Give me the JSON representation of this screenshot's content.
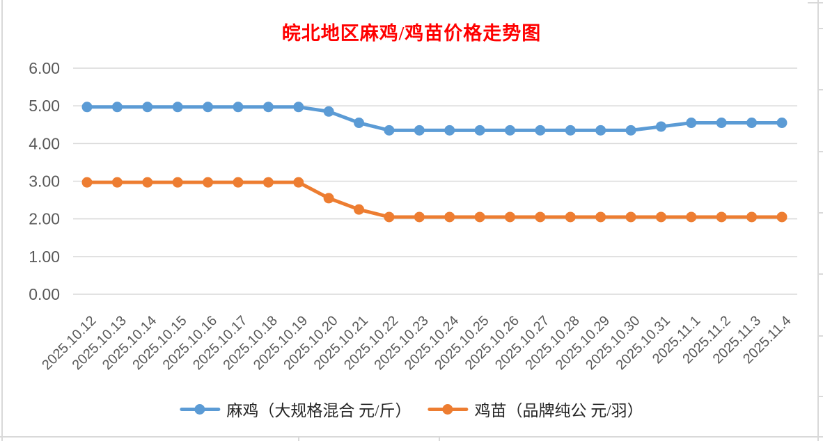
{
  "chart_data": {
    "type": "line",
    "title": "皖北地区麻鸡/鸡苗价格走势图",
    "title_color": "#FF0000",
    "categories": [
      "2025.10.12",
      "2025.10.13",
      "2025.10.14",
      "2025.10.15",
      "2025.10.16",
      "2025.10.17",
      "2025.10.18",
      "2025.10.19",
      "2025.10.20",
      "2025.10.21",
      "2025.10.22",
      "2025.10.23",
      "2025.10.24",
      "2025.10.25",
      "2025.10.26",
      "2025.10.27",
      "2025.10.28",
      "2025.10.29",
      "2025.10.30",
      "2025.10.31",
      "2025.11.1",
      "2025.11.2",
      "2025.11.3",
      "2025.11.4"
    ],
    "series": [
      {
        "name": "麻鸡（大规格混合 元/斤）",
        "color": "#5B9BD5",
        "values": [
          4.97,
          4.97,
          4.97,
          4.97,
          4.97,
          4.97,
          4.97,
          4.97,
          4.85,
          4.55,
          4.35,
          4.35,
          4.35,
          4.35,
          4.35,
          4.35,
          4.35,
          4.35,
          4.35,
          4.45,
          4.55,
          4.55,
          4.55,
          4.55
        ]
      },
      {
        "name": "鸡苗（品牌纯公 元/羽）",
        "color": "#ED7D31",
        "values": [
          2.97,
          2.97,
          2.97,
          2.97,
          2.97,
          2.97,
          2.97,
          2.97,
          2.55,
          2.25,
          2.05,
          2.05,
          2.05,
          2.05,
          2.05,
          2.05,
          2.05,
          2.05,
          2.05,
          2.05,
          2.05,
          2.05,
          2.05,
          2.05
        ]
      }
    ],
    "ylim": [
      0,
      6
    ],
    "ytick_labels": [
      "6.00",
      "5.00",
      "4.00",
      "3.00",
      "2.00",
      "1.00",
      "0.00"
    ],
    "grid": "horizontal-only",
    "legend_position": "bottom",
    "xlabel": "",
    "ylabel": "",
    "axis_text_color": "#595959",
    "gridline_color": "#D9D9D9"
  }
}
